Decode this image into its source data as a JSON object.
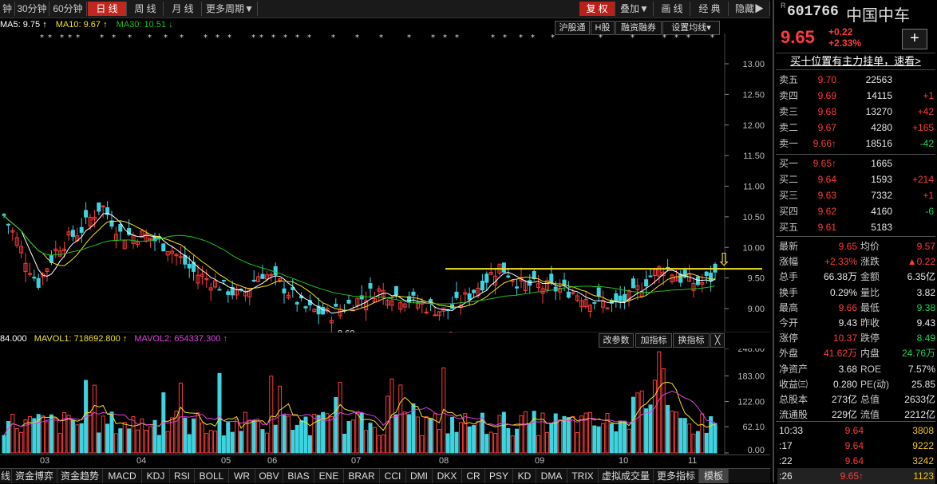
{
  "toolbar": {
    "periods": [
      "钟",
      "30分钟",
      "60分钟",
      "日 线",
      "周 线",
      "月 线",
      "更多周期▼"
    ],
    "active_index": 3,
    "right_buttons": [
      "复 权",
      "叠加▼",
      "画 线",
      "经 典",
      "隐藏▶"
    ]
  },
  "ma_legend": {
    "ma5": "MA5: 9.75 ↑",
    "ma10": "MA10: 9.67 ↑",
    "ma30": "MA30: 10.51 ↓"
  },
  "chart_buttons": [
    "沪股通",
    "H股",
    "融资融券",
    "设置均线▾"
  ],
  "main_chart": {
    "y_ticks": [
      "13.00",
      "12.50",
      "12.00",
      "11.50",
      "11.00",
      "10.50",
      "10.00",
      "9.50",
      "9.00"
    ],
    "low_label": "←8.60",
    "s_marker": "S",
    "resistance_price": 9.65,
    "arrow_glyph": "⇩"
  },
  "vol_legend": {
    "vol": "84.000",
    "mavol1": "MAVOL1: 718692.800 ↑",
    "mavol2": "MAVOL2: 654337.300 ↑"
  },
  "vol_buttons": [
    "改参数",
    "加指标",
    "换指标",
    "╳"
  ],
  "vol_ticks": [
    "248.00",
    "183.00",
    "122.00",
    "62.10",
    "0.00"
  ],
  "date_labels": [
    "03",
    "04",
    "05",
    "06",
    "07",
    "08",
    "09",
    "10",
    "11"
  ],
  "bottom_tabs": [
    "线",
    "资金博弈",
    "资金趋势",
    "MACD",
    "KDJ",
    "RSI",
    "BOLL",
    "WR",
    "OBV",
    "BIAS",
    "ENE",
    "BRAR",
    "CCI",
    "DMI",
    "DKX",
    "CR",
    "PSY",
    "KD",
    "DMA",
    "TRIX",
    "虚拟成交量",
    "更多指标",
    "模板"
  ],
  "colors": {
    "up": "#ff3b3b",
    "down": "#3dd4e0",
    "ma5": "#ffffff",
    "ma10": "#f0e020",
    "ma30": "#20c020",
    "resistance": "#f0e020"
  },
  "panel": {
    "r_mark": "R",
    "code": "601766",
    "name": "中国中车",
    "price": "9.65",
    "change": "+0.22",
    "change_pct": "+2.33%",
    "add_button": "+",
    "promo": "买十位置有主力挂单，速看>",
    "asks": [
      {
        "label": "卖五",
        "price": "9.70",
        "vol": "22563",
        "chg": ""
      },
      {
        "label": "卖四",
        "price": "9.69",
        "vol": "14115",
        "chg": "+1"
      },
      {
        "label": "卖三",
        "price": "9.68",
        "vol": "13270",
        "chg": "+42"
      },
      {
        "label": "卖二",
        "price": "9.67",
        "vol": "4280",
        "chg": "+165"
      },
      {
        "label": "卖一",
        "price": "9.66↑",
        "vol": "18516",
        "chg": "-42"
      }
    ],
    "bids": [
      {
        "label": "买一",
        "price": "9.65↑",
        "vol": "1665",
        "chg": ""
      },
      {
        "label": "买二",
        "price": "9.64",
        "vol": "1593",
        "chg": "+214"
      },
      {
        "label": "买三",
        "price": "9.63",
        "vol": "7332",
        "chg": "+1"
      },
      {
        "label": "买四",
        "price": "9.62",
        "vol": "4160",
        "chg": "-6"
      },
      {
        "label": "买五",
        "price": "9.61",
        "vol": "5183",
        "chg": ""
      }
    ],
    "stats": [
      {
        "l1": "最新",
        "v1": "9.65",
        "l2": "均价",
        "v2": "9.57"
      },
      {
        "l1": "涨幅",
        "v1": "+2.33%",
        "l2": "涨跌",
        "v2": "▲0.22"
      },
      {
        "l1": "总手",
        "v1": "66.38万",
        "l2": "金额",
        "v2": "6.35亿"
      },
      {
        "l1": "换手",
        "v1": "0.29%",
        "l2": "量比",
        "v2": "3.82"
      },
      {
        "l1": "最高",
        "v1": "9.66",
        "l2": "最低",
        "v2": "9.38"
      },
      {
        "l1": "今开",
        "v1": "9.43",
        "l2": "昨收",
        "v2": "9.43"
      },
      {
        "l1": "涨停",
        "v1": "10.37",
        "l2": "跌停",
        "v2": "8.49"
      },
      {
        "l1": "外盘",
        "v1": "41.62万",
        "l2": "内盘",
        "v2": "24.76万"
      },
      {
        "l1": "净资产",
        "v1": "3.68",
        "l2": "ROE",
        "v2": "7.57%"
      },
      {
        "l1": "收益㈢",
        "v1": "0.280",
        "l2": "PE(动)",
        "v2": "25.85"
      },
      {
        "l1": "总股本",
        "v1": "273亿",
        "l2": "总值",
        "v2": "2633亿"
      },
      {
        "l1": "流通股",
        "v1": "229亿",
        "l2": "流值",
        "v2": "2212亿"
      }
    ],
    "ticks": [
      {
        "time": "10:33",
        "price": "9.64",
        "vol": "3808"
      },
      {
        "time": ":17",
        "price": "9.64",
        "vol": "9222"
      },
      {
        "time": ":22",
        "price": "9.64",
        "vol": "3242"
      },
      {
        "time": ":26",
        "price": "9.65↑",
        "vol": "1123"
      }
    ]
  }
}
